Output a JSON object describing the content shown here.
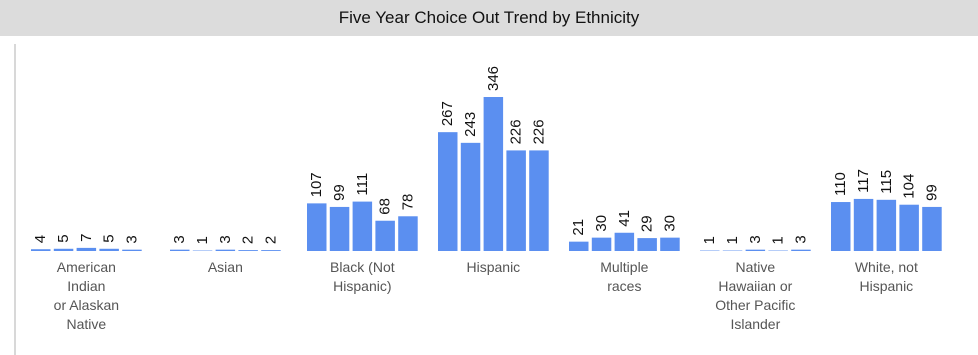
{
  "chart_data": {
    "type": "bar",
    "title": "Five Year Choice Out Trend by Ethnicity",
    "groups": [
      {
        "label": [
          "American",
          "Indian",
          "or Alaskan",
          "Native"
        ],
        "values": [
          4,
          5,
          7,
          5,
          3
        ]
      },
      {
        "label": [
          "Asian"
        ],
        "values": [
          3,
          1,
          3,
          2,
          2
        ]
      },
      {
        "label": [
          "Black (Not",
          "Hispanic)"
        ],
        "values": [
          107,
          99,
          111,
          68,
          78
        ]
      },
      {
        "label": [
          "Hispanic"
        ],
        "values": [
          267,
          243,
          346,
          226,
          226
        ]
      },
      {
        "label": [
          "Multiple",
          "races"
        ],
        "values": [
          21,
          30,
          41,
          29,
          30
        ]
      },
      {
        "label": [
          "Native",
          "Hawaiian or",
          "Other Pacific",
          "Islander"
        ],
        "values": [
          1,
          1,
          3,
          1,
          3
        ]
      },
      {
        "label": [
          "White, not",
          "Hispanic"
        ],
        "values": [
          110,
          117,
          115,
          104,
          99
        ]
      }
    ],
    "bars_per_group": 5,
    "bar_color": "#5b8ff0",
    "ylim": [
      0,
      346
    ],
    "grid": false,
    "legend": "none"
  }
}
